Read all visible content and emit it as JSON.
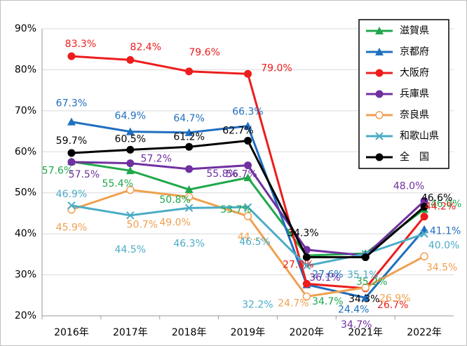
{
  "chart_data": {
    "type": "line",
    "categories": [
      "2016年",
      "2017年",
      "2018年",
      "2019年",
      "2020年",
      "2021年",
      "2022年"
    ],
    "ylim": [
      20,
      90
    ],
    "yticks": [
      {
        "value": 20,
        "label": "20%"
      },
      {
        "value": 30,
        "label": "30%"
      },
      {
        "value": 40,
        "label": "40%"
      },
      {
        "value": 50,
        "label": "50%"
      },
      {
        "value": 60,
        "label": "60%"
      },
      {
        "value": 70,
        "label": "70%"
      },
      {
        "value": 80,
        "label": "80%"
      },
      {
        "value": 90,
        "label": "90%"
      }
    ],
    "grid": true,
    "legend": "top-right",
    "series": [
      {
        "name": "滋賀県",
        "color": "#1fa84a",
        "marker": "triangle",
        "values": [
          57.6,
          55.4,
          50.8,
          53.7,
          34.7,
          35.2,
          46.0
        ],
        "value_labels": [
          "57.6%",
          "55.4%",
          "50.8%",
          "53.7%",
          "34.7%",
          "35.2%",
          "46.0%"
        ]
      },
      {
        "name": "京都府",
        "color": "#1f6fbf",
        "marker": "triangle",
        "values": [
          67.3,
          64.9,
          64.7,
          66.3,
          27.6,
          24.4,
          41.1
        ],
        "value_labels": [
          "67.3%",
          "64.9%",
          "64.7%",
          "66.3%",
          "27.6%",
          "24.4%",
          "41.1%"
        ]
      },
      {
        "name": "大阪府",
        "color": "#ee1c1c",
        "marker": "circle",
        "values": [
          83.3,
          82.4,
          79.6,
          79.0,
          27.8,
          26.7,
          44.2
        ],
        "value_labels": [
          "83.3%",
          "82.4%",
          "79.6%",
          "79.0%",
          "27.8%",
          "26.7%",
          "44.2%"
        ]
      },
      {
        "name": "兵庫県",
        "color": "#7030a0",
        "marker": "circle",
        "values": [
          57.5,
          57.2,
          55.8,
          56.7,
          36.1,
          34.7,
          48.0
        ],
        "value_labels": [
          "57.5%",
          "57.2%",
          "55.8%",
          "56.7%",
          "36.1%",
          "34.7%",
          "48.0%"
        ]
      },
      {
        "name": "奈良県",
        "color": "#f0a050",
        "marker": "open-circle",
        "values": [
          45.9,
          50.7,
          49.0,
          44.3,
          24.7,
          26.9,
          34.5
        ],
        "value_labels": [
          "45.9%",
          "50.7%",
          "49.0%",
          "44....",
          "24.7%",
          "26.9%",
          "34.5%"
        ]
      },
      {
        "name": "和歌山県",
        "color": "#4bacc6",
        "marker": "x",
        "values": [
          46.9,
          44.5,
          46.3,
          46.5,
          32.2,
          35.1,
          40.0
        ],
        "value_labels": [
          "46.9%",
          "44.5%",
          "46.3%",
          "46.5%",
          "32.2%",
          "35.1%",
          "40.0%"
        ]
      },
      {
        "name": "全　国",
        "color": "#000000",
        "marker": "circle",
        "values": [
          59.7,
          60.5,
          61.2,
          62.7,
          34.3,
          34.3,
          46.6
        ],
        "value_labels": [
          "59.7%",
          "60.5%",
          "61.2%",
          "62.7%",
          "34.3%",
          "34.3%",
          "46.6%"
        ]
      }
    ]
  }
}
